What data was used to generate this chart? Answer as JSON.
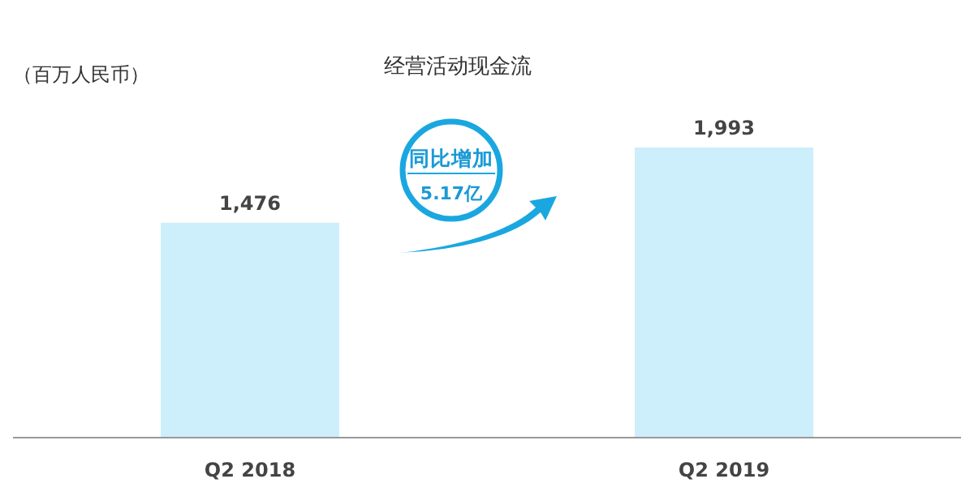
{
  "chart_data": {
    "type": "bar",
    "title": "经营活动现金流",
    "ylabel": "（百万人民币）",
    "categories": [
      "Q2 2018",
      "Q2 2019"
    ],
    "values": [
      1476,
      1993
    ],
    "color": "#cdeefb",
    "value_labels": [
      "1,476",
      "1,993"
    ],
    "annotations": [
      "同比增加",
      "5.17亿"
    ]
  }
}
